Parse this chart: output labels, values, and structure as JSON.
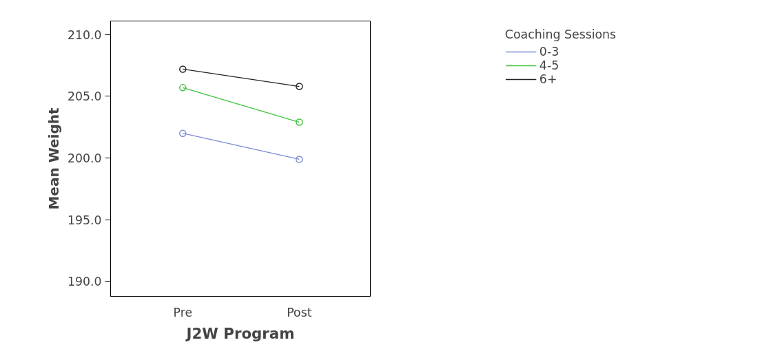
{
  "chart_data": {
    "type": "line",
    "xlabel": "J2W Program",
    "ylabel": "Mean Weight",
    "legend_title": "Coaching Sessions",
    "categories": [
      "Pre",
      "Post"
    ],
    "series": [
      {
        "name": "0-3",
        "color": "#7b8ad6",
        "values": [
          202.0,
          199.9
        ]
      },
      {
        "name": "4-5",
        "color": "#3dc43d",
        "values": [
          205.7,
          202.9
        ]
      },
      {
        "name": "6+",
        "color": "#222222",
        "values": [
          207.2,
          205.8
        ]
      }
    ],
    "ylim": [
      188.8,
      211.1
    ],
    "yticks": [
      {
        "value": 190,
        "label": "190.0"
      },
      {
        "value": 195,
        "label": "195.0"
      },
      {
        "value": 200,
        "label": "200.0"
      },
      {
        "value": 205,
        "label": "205.0"
      },
      {
        "value": 210,
        "label": "210.0"
      }
    ],
    "grid": false,
    "legend": "top right",
    "marker": "circle",
    "line_style": "solid"
  }
}
